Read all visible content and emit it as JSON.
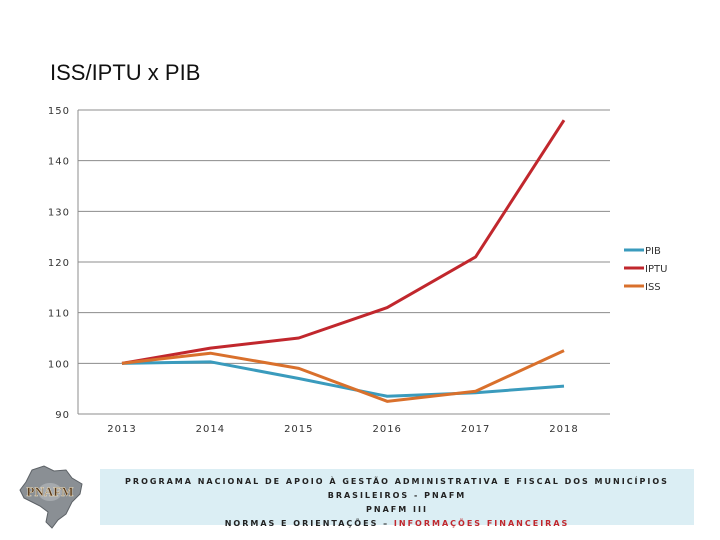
{
  "title": "ISS/IPTU x PIB",
  "chart_data": {
    "type": "line",
    "categories": [
      "2013",
      "2014",
      "2015",
      "2016",
      "2017",
      "2018"
    ],
    "series": [
      {
        "name": "PIB",
        "color": "#3a9bbd",
        "values": [
          100,
          100.3,
          97,
          93.5,
          94.2,
          95.5
        ]
      },
      {
        "name": "IPTU",
        "color": "#c1272d",
        "values": [
          100,
          103,
          105,
          111,
          121,
          148
        ]
      },
      {
        "name": "ISS",
        "color": "#d9702c",
        "values": [
          100,
          102,
          99,
          92.5,
          94.5,
          102.5
        ]
      }
    ],
    "ylim": [
      90,
      150
    ],
    "yticks": [
      90,
      100,
      110,
      120,
      130,
      140,
      150
    ],
    "grid": true,
    "legend": "right"
  },
  "footer": {
    "line1": "PROGRAMA NACIONAL DE APOIO À GESTÃO ADMINISTRATIVA E FISCAL DOS MUNICÍPIOS BRASILEIROS - PNAFM",
    "line2": "PNAFM III",
    "line3_prefix": "NORMAS E ORIENTAÇÕES – ",
    "line3_highlight": "INFORMAÇÕES FINANCEIRAS"
  },
  "logo": {
    "text": "PNAFM",
    "icon": "brazil-map-icon"
  }
}
